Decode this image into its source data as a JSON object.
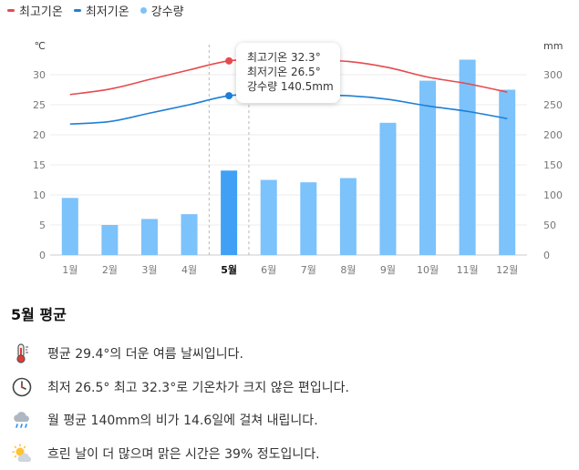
{
  "legend": [
    {
      "label": "최고기온",
      "color": "#e64a4f",
      "kind": "line"
    },
    {
      "label": "최저기온",
      "color": "#1e7fd6",
      "kind": "line"
    },
    {
      "label": "강수량",
      "color": "#7cc2fb",
      "kind": "dot"
    }
  ],
  "chart_data": {
    "type": "bar+line",
    "categories": [
      "1월",
      "2월",
      "3월",
      "4월",
      "5월",
      "6월",
      "7월",
      "8월",
      "9월",
      "10월",
      "11월",
      "12월"
    ],
    "selected_index": 4,
    "y_left": {
      "unit": "℃",
      "ticks": [
        0,
        5,
        10,
        15,
        20,
        25,
        30
      ],
      "range": [
        0,
        35
      ]
    },
    "y_right": {
      "unit": "mm",
      "ticks": [
        0,
        50,
        100,
        150,
        200,
        250,
        300
      ],
      "range": [
        0,
        350
      ]
    },
    "series": [
      {
        "name": "강수량",
        "axis": "right",
        "type": "bar",
        "color": "#7cc2fb",
        "selected_color": "#3fa0f5",
        "values": [
          95,
          50,
          60,
          68,
          140.5,
          125,
          121,
          128,
          220,
          290,
          325,
          275
        ]
      },
      {
        "name": "최고기온",
        "axis": "left",
        "type": "line",
        "color": "#e64a4f",
        "values": [
          26.7,
          27.6,
          29.2,
          30.8,
          32.3,
          32.6,
          32.5,
          32.2,
          31.2,
          29.6,
          28.5,
          27.1
        ]
      },
      {
        "name": "최저기온",
        "axis": "left",
        "type": "line",
        "color": "#1e7fd6",
        "values": [
          21.8,
          22.2,
          23.6,
          25.0,
          26.5,
          26.8,
          26.6,
          26.5,
          25.9,
          24.8,
          23.9,
          22.7
        ]
      }
    ]
  },
  "tooltip": {
    "line1": "최고기온 32.3°",
    "line2": "최저기온 26.5°",
    "line3": "강수량 140.5mm"
  },
  "summary": {
    "title": "5월 평균",
    "rows": [
      {
        "icon": "thermometer-icon",
        "text": "평균 29.4°의 더운 여름 날씨입니다."
      },
      {
        "icon": "clock-icon",
        "text": "최저 26.5° 최고 32.3°로 기온차가 크지 않은 편입니다."
      },
      {
        "icon": "rain-cloud-icon",
        "text": "월 평균 140mm의 비가 14.6일에 걸쳐 내립니다."
      },
      {
        "icon": "sun-cloud-icon",
        "text": "흐린 날이 더 많으며 맑은 시간은 39% 정도입니다."
      }
    ]
  }
}
